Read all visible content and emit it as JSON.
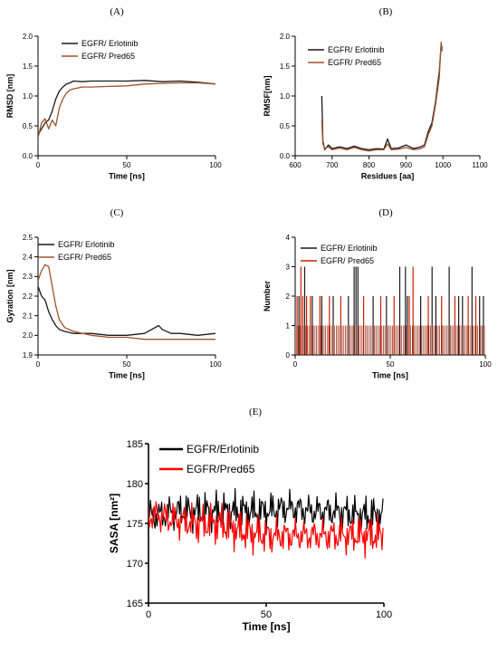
{
  "chart_data": [
    {
      "panel": "(A)",
      "type": "line",
      "xlabel": "Time [ns]",
      "ylabel": "RMSD [nm]",
      "xlim": [
        0,
        100
      ],
      "ylim": [
        0,
        2.0
      ],
      "xticks": [
        "0",
        "50",
        "100"
      ],
      "yticks": [
        "0.0",
        "0.5",
        "1.0",
        "1.5",
        "2.0"
      ],
      "legend": "top-left",
      "series": [
        {
          "name": "EGFR/ Erlotinib",
          "color": "#1a1a1a",
          "x": [
            0,
            2,
            4,
            6,
            8,
            10,
            12,
            14,
            16,
            18,
            20,
            25,
            30,
            40,
            50,
            60,
            70,
            80,
            90,
            100
          ],
          "y": [
            0.35,
            0.45,
            0.55,
            0.6,
            0.75,
            0.95,
            1.08,
            1.15,
            1.2,
            1.22,
            1.25,
            1.24,
            1.25,
            1.25,
            1.25,
            1.26,
            1.24,
            1.25,
            1.23,
            1.2
          ]
        },
        {
          "name": "EGFR/ Pred65",
          "color": "#a0522d",
          "x": [
            0,
            2,
            4,
            6,
            8,
            10,
            12,
            14,
            16,
            18,
            20,
            25,
            30,
            40,
            50,
            60,
            70,
            80,
            90,
            100
          ],
          "y": [
            0.3,
            0.55,
            0.62,
            0.45,
            0.6,
            0.5,
            0.8,
            0.95,
            1.05,
            1.1,
            1.12,
            1.15,
            1.15,
            1.16,
            1.17,
            1.2,
            1.21,
            1.22,
            1.22,
            1.2
          ]
        }
      ]
    },
    {
      "panel": "(B)",
      "type": "line",
      "xlabel": "Residues [aa]",
      "ylabel": "RMSF[nm]",
      "xlim": [
        600,
        1100
      ],
      "ylim": [
        0,
        2.0
      ],
      "xticks": [
        "600",
        "700",
        "800",
        "900",
        "1000",
        "1100"
      ],
      "yticks": [
        "0.0",
        "0.5",
        "1.0",
        "1.5",
        "2.0"
      ],
      "legend": "top-left",
      "series": [
        {
          "name": "EGFR/ Erlotinib",
          "color": "#1a1a1a",
          "x": [
            672,
            675,
            680,
            690,
            700,
            720,
            740,
            760,
            780,
            800,
            820,
            840,
            850,
            860,
            880,
            900,
            920,
            940,
            950,
            960,
            970,
            980,
            990,
            995,
            998
          ],
          "y": [
            1.0,
            0.25,
            0.1,
            0.18,
            0.12,
            0.15,
            0.12,
            0.16,
            0.12,
            0.1,
            0.12,
            0.11,
            0.28,
            0.12,
            0.13,
            0.18,
            0.12,
            0.15,
            0.18,
            0.4,
            0.55,
            0.9,
            1.4,
            1.85,
            1.8
          ]
        },
        {
          "name": "EGFR/ Pred65",
          "color": "#a0522d",
          "x": [
            672,
            675,
            680,
            690,
            700,
            720,
            740,
            760,
            780,
            800,
            820,
            840,
            850,
            860,
            880,
            900,
            920,
            940,
            950,
            960,
            970,
            980,
            990,
            995,
            998
          ],
          "y": [
            0.6,
            0.2,
            0.12,
            0.15,
            0.1,
            0.13,
            0.1,
            0.14,
            0.1,
            0.08,
            0.1,
            0.1,
            0.2,
            0.1,
            0.11,
            0.14,
            0.1,
            0.12,
            0.15,
            0.35,
            0.5,
            0.85,
            1.3,
            1.9,
            1.75
          ]
        }
      ]
    },
    {
      "panel": "(C)",
      "type": "line",
      "xlabel": "Time [ns]",
      "ylabel": "Gyration [nm]",
      "xlim": [
        0,
        100
      ],
      "ylim": [
        1.9,
        2.5
      ],
      "xticks": [
        "0",
        "50",
        "100"
      ],
      "yticks": [
        "1.9",
        "2.0",
        "2.1",
        "2.2",
        "2.3",
        "2.4",
        "2.5"
      ],
      "legend": "top-left",
      "series": [
        {
          "name": "EGFR/ Erlotinib",
          "color": "#1a1a1a",
          "x": [
            0,
            2,
            4,
            6,
            8,
            10,
            12,
            15,
            20,
            30,
            40,
            50,
            60,
            68,
            70,
            75,
            80,
            90,
            100
          ],
          "y": [
            2.25,
            2.2,
            2.18,
            2.12,
            2.08,
            2.05,
            2.03,
            2.02,
            2.01,
            2.01,
            2.0,
            2.0,
            2.01,
            2.05,
            2.03,
            2.01,
            2.01,
            2.0,
            2.01
          ]
        },
        {
          "name": "EGFR/ Pred65",
          "color": "#a0522d",
          "x": [
            0,
            2,
            4,
            6,
            8,
            10,
            12,
            15,
            20,
            30,
            40,
            50,
            60,
            70,
            80,
            90,
            100
          ],
          "y": [
            2.28,
            2.33,
            2.36,
            2.35,
            2.25,
            2.15,
            2.08,
            2.04,
            2.02,
            2.0,
            1.99,
            1.99,
            1.98,
            1.98,
            1.98,
            1.98,
            1.98
          ]
        }
      ]
    },
    {
      "panel": "(D)",
      "type": "bar",
      "xlabel": "Time [ns]",
      "ylabel": "Number",
      "xlim": [
        0,
        100
      ],
      "ylim": [
        0,
        4
      ],
      "xticks": [
        "0",
        "50",
        "100"
      ],
      "yticks": [
        "0",
        "1",
        "2",
        "3",
        "4"
      ],
      "legend": "top-left",
      "series": [
        {
          "name": "EGFR/ Erlotinib",
          "color": "#1a1a1a",
          "x": [
            2,
            5,
            9,
            14,
            20,
            28,
            31,
            32,
            33,
            41,
            48,
            55,
            58,
            59,
            66,
            72,
            74,
            81,
            86,
            88,
            93,
            97,
            99
          ],
          "y": [
            2,
            3,
            2,
            2,
            2,
            2,
            3,
            3,
            3,
            2,
            2,
            3,
            3,
            2,
            2,
            3,
            2,
            3,
            2,
            2,
            3,
            2,
            2
          ]
        },
        {
          "name": "EGFR/ Pred65",
          "color": "#cc2200",
          "x": [
            1,
            3,
            4,
            6,
            8,
            13,
            18,
            24,
            36,
            45,
            52,
            60,
            62,
            70,
            77,
            84,
            91,
            95
          ],
          "y": [
            2,
            3,
            2,
            2,
            2,
            2,
            2,
            2,
            2,
            2,
            2,
            2,
            3,
            2,
            2,
            2,
            2,
            2
          ]
        }
      ]
    },
    {
      "panel": "(E)",
      "type": "line",
      "xlabel": "Time [ns]",
      "ylabel": "SASA [nm²]",
      "xlim": [
        0,
        100
      ],
      "ylim": [
        165,
        185
      ],
      "xticks": [
        "0",
        "50",
        "100"
      ],
      "yticks": [
        "165",
        "170",
        "175",
        "180",
        "185"
      ],
      "legend": "top-left",
      "series": [
        {
          "name": "EGFR/Erlotinib",
          "color": "#000000",
          "x": [
            0,
            5,
            10,
            20,
            30,
            40,
            50,
            60,
            70,
            80,
            90,
            100
          ],
          "y": [
            176,
            176,
            176.5,
            176.5,
            176.5,
            176.5,
            176.5,
            177,
            176.5,
            176.5,
            176,
            176
          ]
        },
        {
          "name": "EGFR/Pred65",
          "color": "#ff0000",
          "x": [
            0,
            5,
            10,
            20,
            30,
            40,
            50,
            60,
            70,
            80,
            90,
            100
          ],
          "y": [
            176,
            176,
            175.5,
            175,
            175,
            174,
            173.5,
            173.5,
            173.5,
            173.5,
            173.5,
            173.5
          ]
        }
      ]
    }
  ]
}
